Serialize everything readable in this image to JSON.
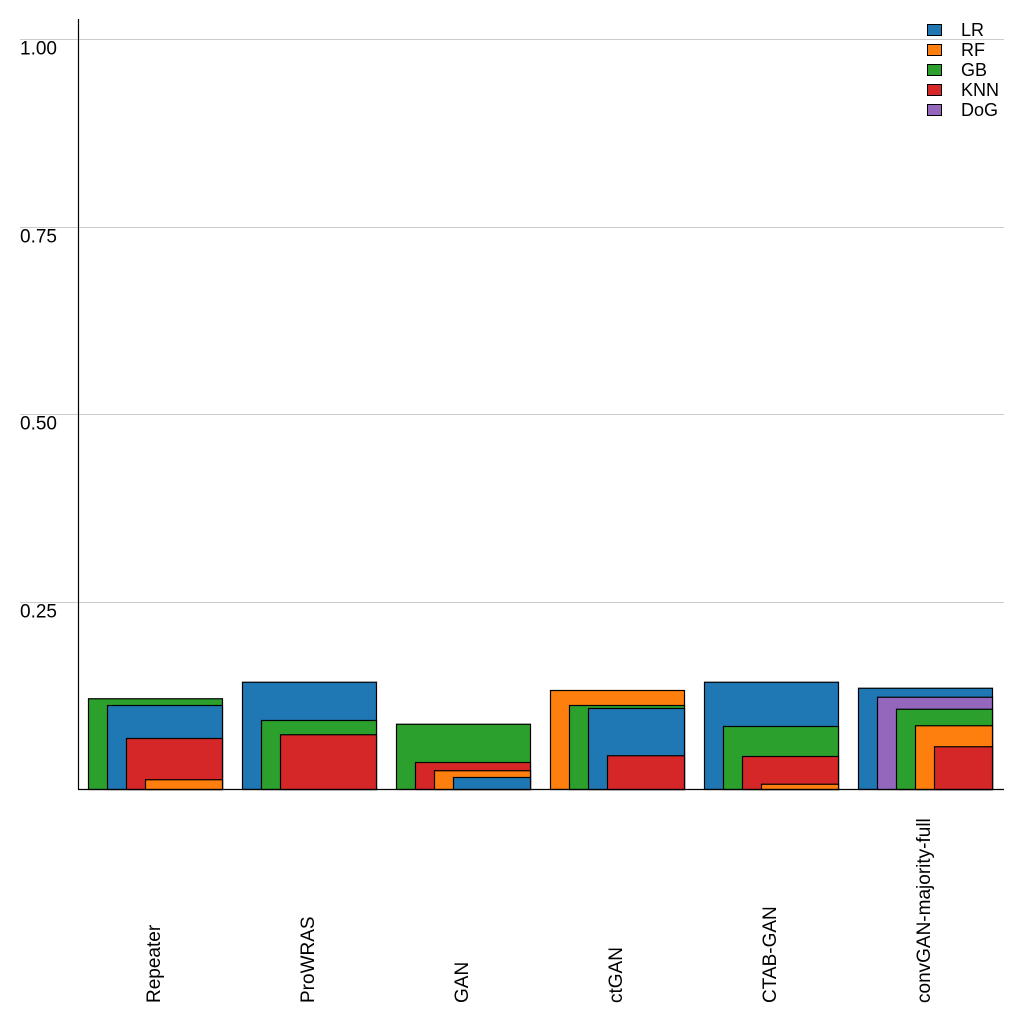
{
  "chart_data": {
    "type": "bar",
    "style": "nested-overlapping",
    "title": "",
    "xlabel": "",
    "ylabel": "",
    "ylim": [
      0,
      1.0
    ],
    "yticks": [
      0.25,
      0.5,
      0.75,
      1.0
    ],
    "ytick_labels": [
      "0.25",
      "0.50",
      "0.75",
      "1.00"
    ],
    "grid": "horizontal",
    "legend_position": "top-right",
    "categories": [
      "Repeater",
      "ProWRAS",
      "GAN",
      "ctGAN",
      "CTAB-GAN",
      "convGAN-majority-full"
    ],
    "series": [
      {
        "name": "LR",
        "color": "#1f77b4",
        "values": [
          0.112,
          0.143,
          0.016,
          0.108,
          0.143,
          0.135
        ]
      },
      {
        "name": "RF",
        "color": "#ff7f0e",
        "values": [
          0.013,
          null,
          0.025,
          0.132,
          0.007,
          0.085
        ]
      },
      {
        "name": "GB",
        "color": "#2ca02c",
        "values": [
          0.121,
          0.092,
          0.087,
          0.112,
          0.084,
          0.107
        ]
      },
      {
        "name": "KNN",
        "color": "#d62728",
        "values": [
          0.068,
          0.073,
          0.036,
          0.045,
          0.044,
          0.057
        ]
      },
      {
        "name": "DoG",
        "color": "#9467bd",
        "values": [
          null,
          null,
          null,
          null,
          null,
          0.123
        ]
      }
    ]
  }
}
